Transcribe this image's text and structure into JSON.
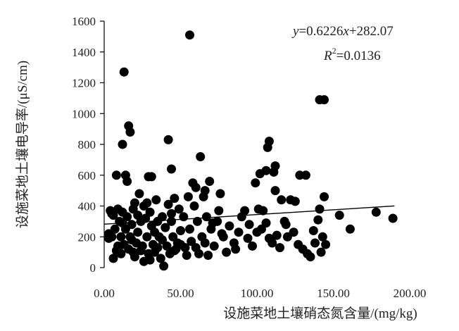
{
  "chart_data": {
    "type": "scatter",
    "xlabel": "设施菜地土壤硝态氮含量/(mg/kg)",
    "ylabel": "设施菜地土壤电导率/(μS/cm)",
    "xlim": [
      0,
      200
    ],
    "ylim": [
      0,
      1600
    ],
    "x_ticks": [
      0,
      50,
      100,
      150,
      200
    ],
    "x_tick_labels": [
      "0.00",
      "50.00",
      "100.00",
      "150.00",
      "200.00"
    ],
    "y_ticks": [
      0,
      200,
      400,
      600,
      800,
      1000,
      1200,
      1400,
      1600
    ],
    "y_tick_labels": [
      "0",
      "200",
      "400",
      "600",
      "800",
      "1000",
      "1200",
      "1400",
      "1600"
    ],
    "grid": false,
    "trendline": {
      "slope": 0.6226,
      "intercept": 282.07,
      "x_range": [
        0,
        190
      ]
    },
    "annotations": {
      "equation_y": "y",
      "equation_rest_1": "=0.6226",
      "equation_x": "x",
      "equation_rest_2": "+282.07",
      "r2_r": "R",
      "r2_sup": "2",
      "r2_rest": "=0.0136"
    },
    "points": [
      [
        56,
        1510
      ],
      [
        13,
        1270
      ],
      [
        16,
        920
      ],
      [
        17,
        880
      ],
      [
        12,
        800
      ],
      [
        42,
        830
      ],
      [
        63,
        720
      ],
      [
        108,
        820
      ],
      [
        107,
        780
      ],
      [
        144,
        1090
      ],
      [
        141,
        1090
      ],
      [
        8,
        600
      ],
      [
        14,
        600
      ],
      [
        15,
        560
      ],
      [
        29,
        590
      ],
      [
        31,
        590
      ],
      [
        44,
        640
      ],
      [
        58,
        550
      ],
      [
        60,
        520
      ],
      [
        66,
        500
      ],
      [
        69,
        560
      ],
      [
        76,
        480
      ],
      [
        99,
        550
      ],
      [
        102,
        610
      ],
      [
        106,
        630
      ],
      [
        112,
        660
      ],
      [
        111,
        620
      ],
      [
        128,
        600
      ],
      [
        132,
        600
      ],
      [
        112,
        500
      ],
      [
        116,
        440
      ],
      [
        122,
        440
      ],
      [
        144,
        460
      ],
      [
        141,
        380
      ],
      [
        154,
        340
      ],
      [
        161,
        250
      ],
      [
        178,
        360
      ],
      [
        189,
        320
      ],
      [
        3,
        220
      ],
      [
        4,
        370
      ],
      [
        5,
        200
      ],
      [
        6,
        340
      ],
      [
        7,
        250
      ],
      [
        8,
        110
      ],
      [
        9,
        380
      ],
      [
        10,
        100
      ],
      [
        10,
        300
      ],
      [
        11,
        200
      ],
      [
        12,
        360
      ],
      [
        13,
        150
      ],
      [
        14,
        250
      ],
      [
        15,
        330
      ],
      [
        16,
        120
      ],
      [
        17,
        200
      ],
      [
        18,
        280
      ],
      [
        19,
        380
      ],
      [
        19,
        100
      ],
      [
        20,
        420
      ],
      [
        21,
        160
      ],
      [
        22,
        230
      ],
      [
        23,
        480
      ],
      [
        24,
        300
      ],
      [
        25,
        140
      ],
      [
        26,
        400
      ],
      [
        26,
        40
      ],
      [
        27,
        320
      ],
      [
        28,
        200
      ],
      [
        29,
        90
      ],
      [
        30,
        360
      ],
      [
        31,
        270
      ],
      [
        32,
        150
      ],
      [
        33,
        100
      ],
      [
        34,
        440
      ],
      [
        35,
        300
      ],
      [
        36,
        200
      ],
      [
        37,
        60
      ],
      [
        38,
        330
      ],
      [
        39,
        10
      ],
      [
        40,
        260
      ],
      [
        41,
        140
      ],
      [
        42,
        410
      ],
      [
        43,
        90
      ],
      [
        44,
        350
      ],
      [
        45,
        200
      ],
      [
        46,
        450
      ],
      [
        47,
        120
      ],
      [
        48,
        160
      ],
      [
        49,
        380
      ],
      [
        50,
        150
      ],
      [
        52,
        330
      ],
      [
        53,
        130
      ],
      [
        55,
        460
      ],
      [
        57,
        170
      ],
      [
        59,
        400
      ],
      [
        61,
        300
      ],
      [
        62,
        90
      ],
      [
        64,
        200
      ],
      [
        65,
        460
      ],
      [
        67,
        330
      ],
      [
        68,
        80
      ],
      [
        70,
        250
      ],
      [
        72,
        140
      ],
      [
        74,
        300
      ],
      [
        75,
        370
      ],
      [
        78,
        200
      ],
      [
        80,
        100
      ],
      [
        82,
        270
      ],
      [
        85,
        160
      ],
      [
        88,
        230
      ],
      [
        90,
        330
      ],
      [
        92,
        370
      ],
      [
        95,
        280
      ],
      [
        97,
        140
      ],
      [
        100,
        230
      ],
      [
        101,
        380
      ],
      [
        104,
        370
      ],
      [
        106,
        290
      ],
      [
        108,
        190
      ],
      [
        110,
        160
      ],
      [
        113,
        210
      ],
      [
        115,
        130
      ],
      [
        118,
        300
      ],
      [
        120,
        200
      ],
      [
        124,
        230
      ],
      [
        127,
        150
      ],
      [
        130,
        120
      ],
      [
        133,
        90
      ],
      [
        135,
        70
      ],
      [
        138,
        160
      ],
      [
        140,
        310
      ],
      [
        143,
        200
      ],
      [
        145,
        150
      ],
      [
        3,
        190
      ],
      [
        5,
        350
      ],
      [
        9,
        140
      ],
      [
        12,
        290
      ],
      [
        18,
        180
      ],
      [
        22,
        340
      ],
      [
        28,
        420
      ],
      [
        33,
        230
      ],
      [
        38,
        180
      ],
      [
        44,
        300
      ],
      [
        50,
        240
      ],
      [
        56,
        250
      ],
      [
        60,
        130
      ],
      [
        66,
        160
      ],
      [
        71,
        290
      ],
      [
        77,
        220
      ],
      [
        86,
        120
      ],
      [
        94,
        190
      ],
      [
        103,
        250
      ],
      [
        119,
        280
      ],
      [
        125,
        430
      ],
      [
        137,
        240
      ],
      [
        142,
        100
      ],
      [
        6,
        60
      ],
      [
        11,
        90
      ],
      [
        20,
        70
      ],
      [
        24,
        110
      ],
      [
        30,
        50
      ],
      [
        35,
        130
      ],
      [
        46,
        110
      ],
      [
        54,
        80
      ]
    ]
  }
}
